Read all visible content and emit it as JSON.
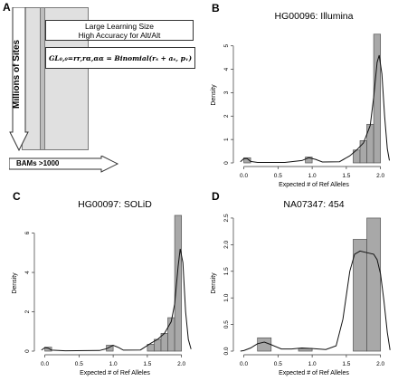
{
  "panels": {
    "a": {
      "letter": "A",
      "box_line1": "Large Learning Size",
      "box_line2": "High Accuracy for Alt/Alt",
      "formula": "GL₀,₀=rr,rα,αα = Binomial(rₛ + aₛ, pᵥ)",
      "vertical_axis_label": "Millions of Sites",
      "horizontal_axis_label": "BAMs >1000"
    }
  },
  "chart_data": [
    {
      "letter": "B",
      "type": "bar",
      "title": "HG00096: Illumina",
      "xlabel": "Expected # of Ref Alleles",
      "ylabel": "Density",
      "xlim": [
        -0.1,
        2.15
      ],
      "ylim": [
        0,
        5.8
      ],
      "xticks": [
        "0.0",
        "0.5",
        "1.0",
        "1.5",
        "2.0"
      ],
      "yticks": [
        "0",
        "1",
        "2",
        "3",
        "4",
        "5"
      ],
      "bin_width": 0.1,
      "bins_left": [
        0.0,
        0.9,
        1.6,
        1.7,
        1.8,
        1.9
      ],
      "values": [
        0.22,
        0.25,
        0.55,
        0.95,
        1.65,
        5.5
      ],
      "density_curve": [
        [
          -0.05,
          0.05
        ],
        [
          0.0,
          0.18
        ],
        [
          0.05,
          0.18
        ],
        [
          0.1,
          0.06
        ],
        [
          0.2,
          0.02
        ],
        [
          0.6,
          0.02
        ],
        [
          0.85,
          0.1
        ],
        [
          0.95,
          0.22
        ],
        [
          1.05,
          0.15
        ],
        [
          1.15,
          0.04
        ],
        [
          1.4,
          0.05
        ],
        [
          1.55,
          0.3
        ],
        [
          1.65,
          0.55
        ],
        [
          1.75,
          0.85
        ],
        [
          1.85,
          1.6
        ],
        [
          1.9,
          2.8
        ],
        [
          1.95,
          4.3
        ],
        [
          1.98,
          4.6
        ],
        [
          2.02,
          3.8
        ],
        [
          2.06,
          2.0
        ],
        [
          2.1,
          0.6
        ],
        [
          2.13,
          0.1
        ]
      ],
      "grid": false
    },
    {
      "letter": "C",
      "type": "bar",
      "title": "HG00097: SOLiD",
      "xlabel": "Expected # of Ref Alleles",
      "ylabel": "Density",
      "xlim": [
        -0.1,
        2.15
      ],
      "ylim": [
        0,
        6.9
      ],
      "xticks": [
        "0.0",
        "0.5",
        "1.0",
        "1.5",
        "2.0"
      ],
      "yticks": [
        "0",
        "2",
        "4",
        "6"
      ],
      "bin_width": 0.1,
      "bins_left": [
        0.0,
        0.9,
        1.5,
        1.6,
        1.7,
        1.8,
        1.9
      ],
      "values": [
        0.2,
        0.3,
        0.35,
        0.6,
        0.9,
        1.7,
        6.9
      ],
      "density_curve": [
        [
          -0.05,
          0.05
        ],
        [
          0.0,
          0.18
        ],
        [
          0.05,
          0.15
        ],
        [
          0.1,
          0.05
        ],
        [
          0.3,
          0.02
        ],
        [
          0.8,
          0.03
        ],
        [
          0.9,
          0.12
        ],
        [
          1.0,
          0.3
        ],
        [
          1.08,
          0.18
        ],
        [
          1.15,
          0.05
        ],
        [
          1.4,
          0.06
        ],
        [
          1.55,
          0.4
        ],
        [
          1.65,
          0.6
        ],
        [
          1.75,
          0.9
        ],
        [
          1.85,
          1.5
        ],
        [
          1.9,
          2.4
        ],
        [
          1.95,
          4.3
        ],
        [
          1.98,
          5.2
        ],
        [
          2.02,
          4.5
        ],
        [
          2.06,
          2.0
        ],
        [
          2.1,
          0.6
        ],
        [
          2.14,
          0.1
        ]
      ],
      "grid": false
    },
    {
      "letter": "D",
      "type": "bar",
      "title": "NA07347: 454",
      "xlabel": "Expected # of Ref Alleles",
      "ylabel": "Density",
      "xlim": [
        -0.1,
        2.15
      ],
      "ylim": [
        0,
        2.55
      ],
      "xticks": [
        "0.0",
        "0.5",
        "1.0",
        "1.5",
        "2.0"
      ],
      "yticks": [
        "0.0",
        "0.5",
        "1.0",
        "1.5",
        "2.0",
        "2.5"
      ],
      "bin_width": 0.2,
      "bins_left": [
        0.2,
        0.8,
        1.6,
        1.8
      ],
      "values": [
        0.25,
        0.05,
        2.1,
        2.5
      ],
      "density_curve": [
        [
          -0.05,
          0.0
        ],
        [
          0.0,
          0.01
        ],
        [
          0.1,
          0.06
        ],
        [
          0.2,
          0.14
        ],
        [
          0.3,
          0.17
        ],
        [
          0.4,
          0.12
        ],
        [
          0.55,
          0.04
        ],
        [
          0.7,
          0.04
        ],
        [
          0.85,
          0.06
        ],
        [
          1.0,
          0.05
        ],
        [
          1.2,
          0.03
        ],
        [
          1.35,
          0.1
        ],
        [
          1.45,
          0.6
        ],
        [
          1.55,
          1.5
        ],
        [
          1.62,
          1.82
        ],
        [
          1.7,
          1.88
        ],
        [
          1.8,
          1.85
        ],
        [
          1.9,
          1.82
        ],
        [
          1.95,
          1.72
        ],
        [
          2.0,
          1.45
        ],
        [
          2.05,
          0.95
        ],
        [
          2.1,
          0.35
        ],
        [
          2.14,
          0.02
        ]
      ],
      "grid": false
    }
  ]
}
